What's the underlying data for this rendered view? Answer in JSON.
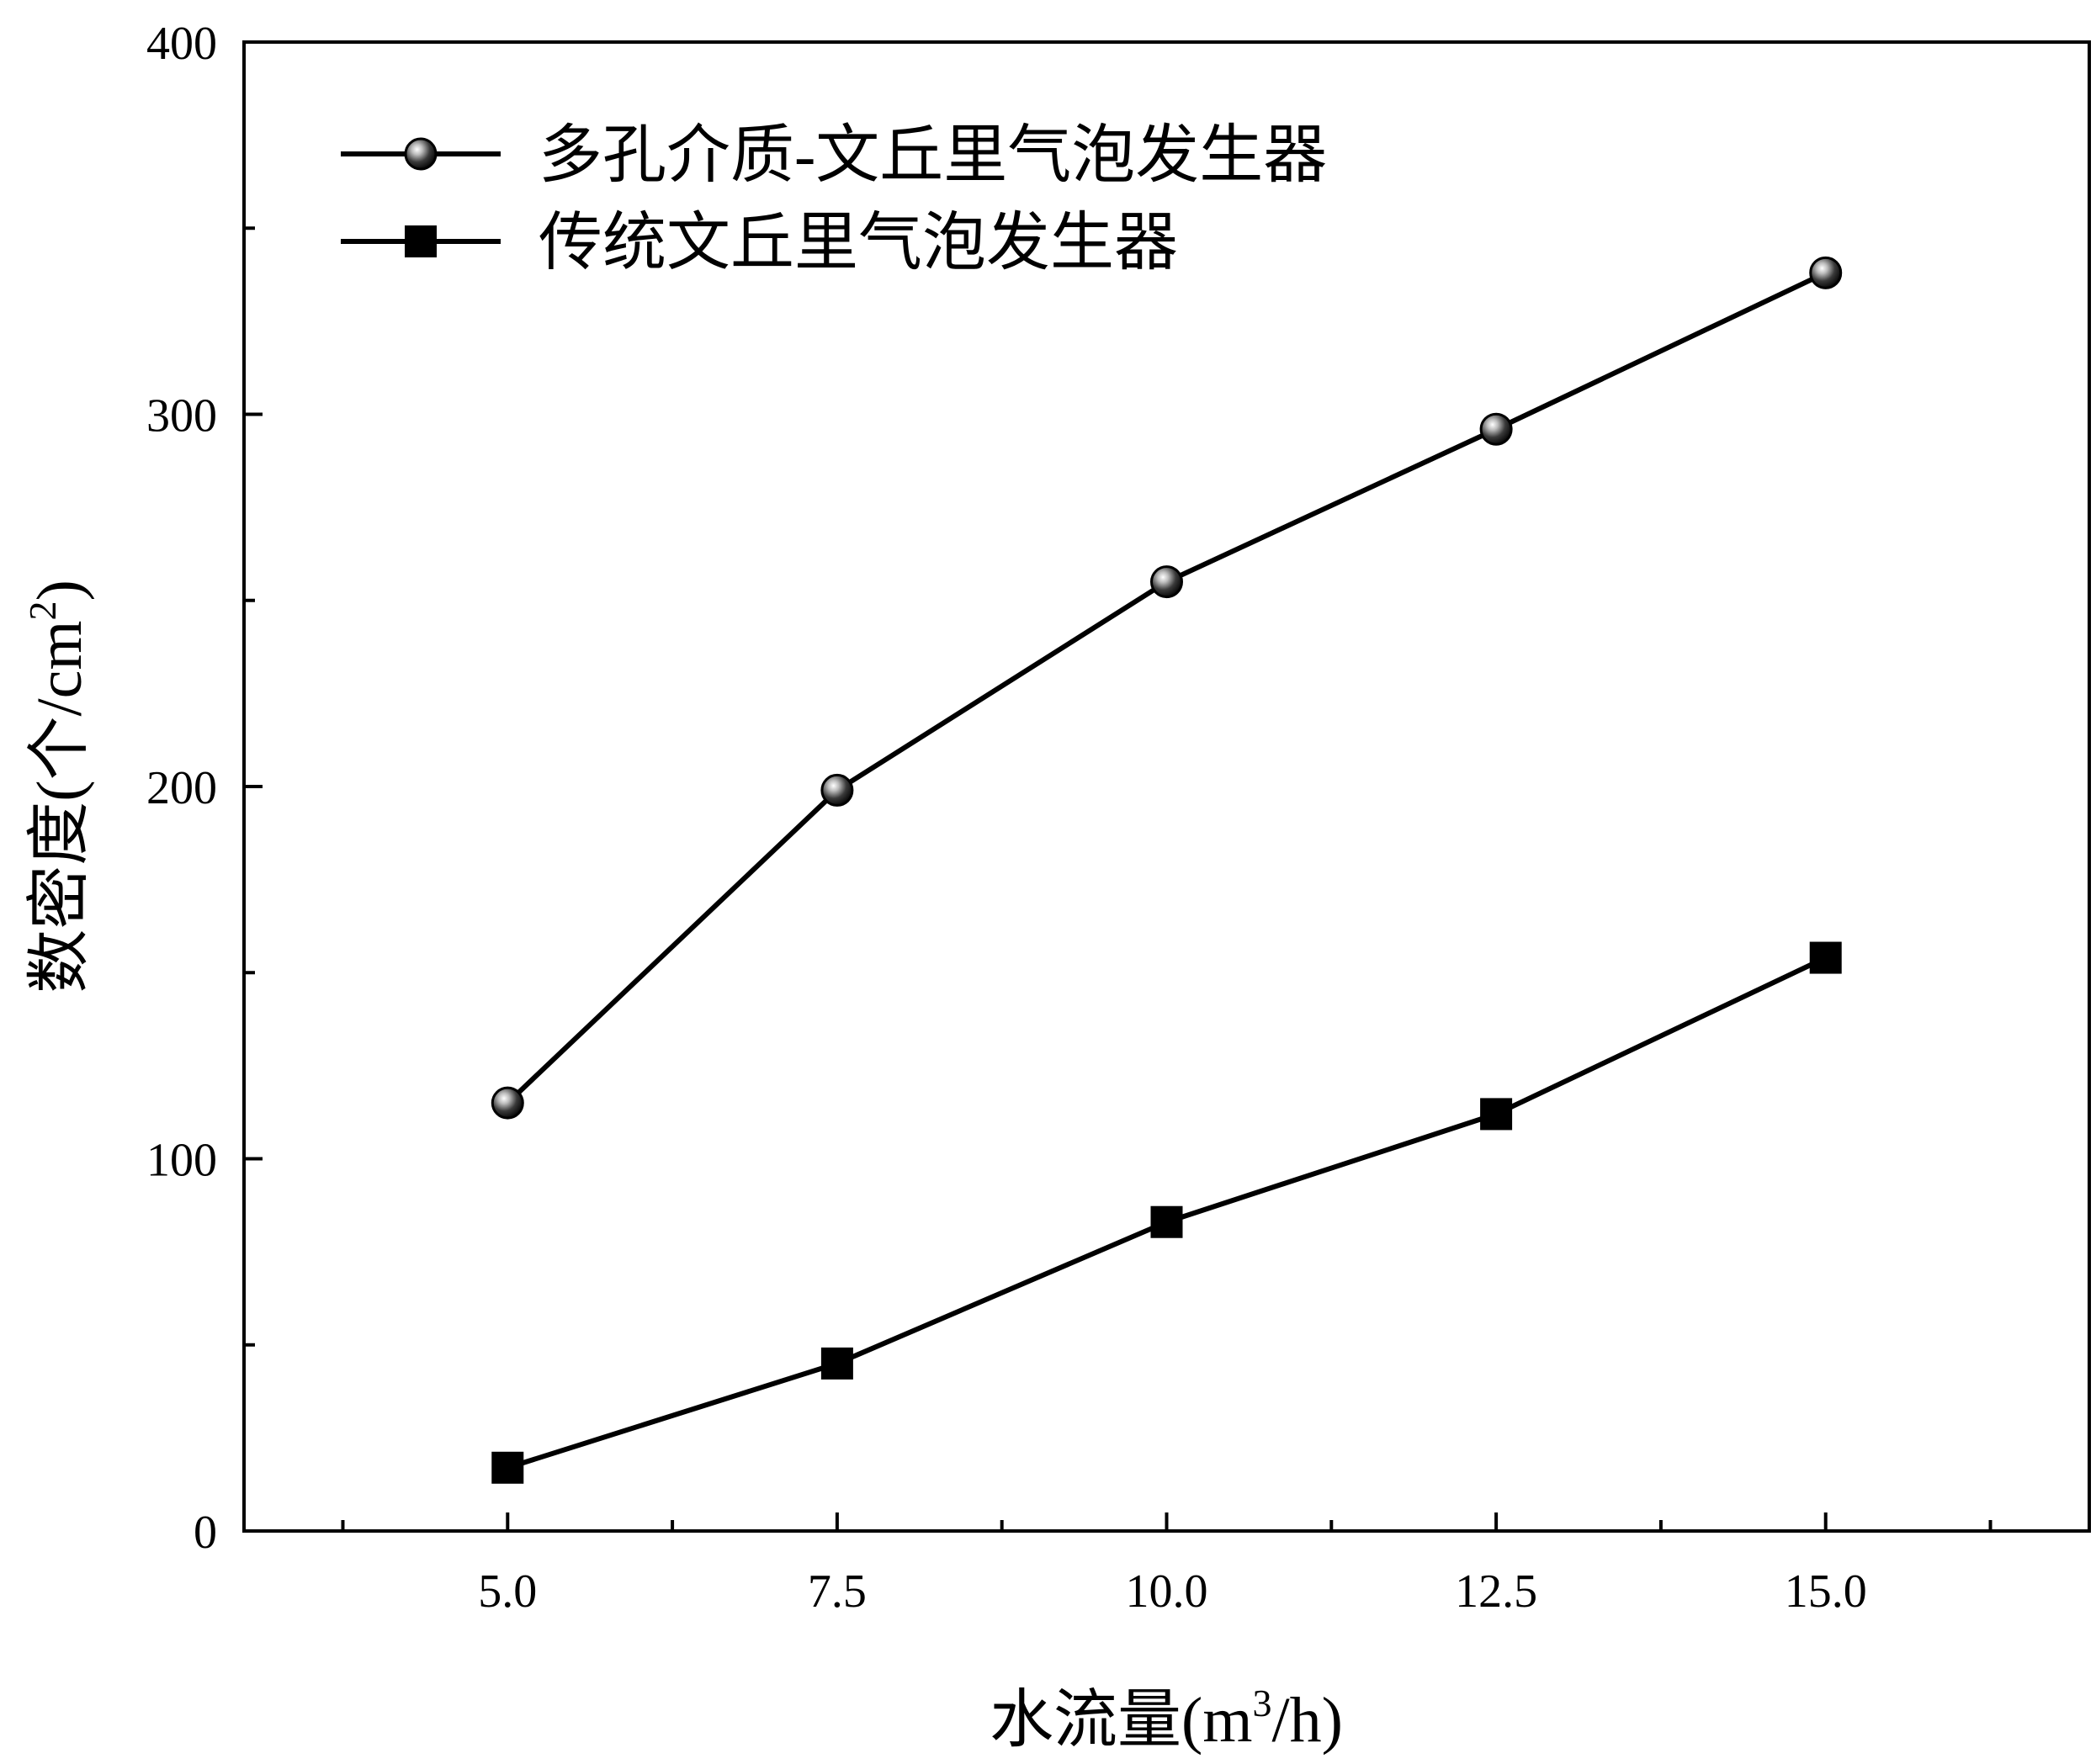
{
  "chart_data": {
    "type": "line",
    "x": [
      5.0,
      7.5,
      10.0,
      12.5,
      15.0
    ],
    "x_ticks": [
      "5.0",
      "7.5",
      "10.0",
      "12.5",
      "15.0"
    ],
    "y_ticks": [
      "0",
      "100",
      "200",
      "300",
      "400"
    ],
    "xlim": [
      3,
      17
    ],
    "ylim": [
      0,
      400
    ],
    "xlabel": {
      "main": "水流量(m",
      "sup": "3",
      "tail": "/h)"
    },
    "ylabel": {
      "main": "数密度(个/cm",
      "sup": "2",
      "tail": ")"
    },
    "title": "",
    "grid": false,
    "legend_position": "top-left",
    "series": [
      {
        "name": "多孔介质-文丘里气泡发生器",
        "marker": "sphere",
        "color": "#000000",
        "values": [
          115,
          199,
          255,
          296,
          338
        ]
      },
      {
        "name": "传统文丘里气泡发生器",
        "marker": "square",
        "color": "#000000",
        "values": [
          17,
          45,
          83,
          112,
          154
        ]
      }
    ]
  }
}
